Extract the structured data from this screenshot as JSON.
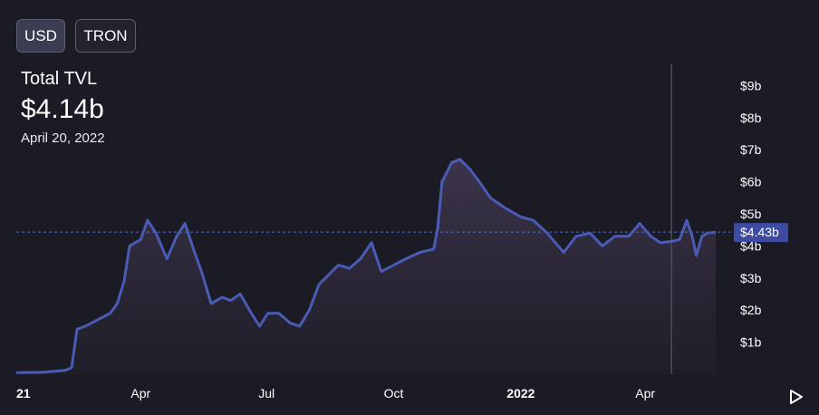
{
  "toggles": {
    "usd": "USD",
    "tron": "TRON"
  },
  "metric": {
    "label": "Total TVL",
    "value": "$4.14b",
    "date": "April 20, 2022"
  },
  "current_value_label": "$4.43b",
  "play_icon": "play-icon",
  "colors": {
    "background": "#1a1b25",
    "line": "#4a5bb5",
    "reference_line": "#5c6bc0",
    "value_badge": "#3d4ba3"
  },
  "chart_data": {
    "type": "area",
    "title": "",
    "xlabel": "",
    "ylabel": "",
    "x_ticks": [
      {
        "label": "21",
        "date": "2021-01-01",
        "bold": true
      },
      {
        "label": "Apr",
        "date": "2021-04-01",
        "bold": false
      },
      {
        "label": "Jul",
        "date": "2021-07-01",
        "bold": false
      },
      {
        "label": "Oct",
        "date": "2021-10-01",
        "bold": false
      },
      {
        "label": "2022",
        "date": "2022-01-01",
        "bold": true
      },
      {
        "label": "Apr",
        "date": "2022-04-01",
        "bold": false
      }
    ],
    "y_ticks": [
      "$1b",
      "$2b",
      "$3b",
      "$4b",
      "$5b",
      "$6b",
      "$7b",
      "$8b",
      "$9b"
    ],
    "y_tick_values": [
      1,
      2,
      3,
      4,
      5,
      6,
      7,
      8,
      9
    ],
    "ylim": [
      0,
      10
    ],
    "current_value": 4.43,
    "hover_date": "2022-04-20",
    "grid": false,
    "series": [
      {
        "values": [
          [
            "2021-01-01",
            0.05
          ],
          [
            "2021-01-20",
            0.06
          ],
          [
            "2021-02-05",
            0.12
          ],
          [
            "2021-02-10",
            0.2
          ],
          [
            "2021-02-14",
            1.4
          ],
          [
            "2021-02-20",
            1.5
          ],
          [
            "2021-03-01",
            1.7
          ],
          [
            "2021-03-10",
            1.9
          ],
          [
            "2021-03-15",
            2.2
          ],
          [
            "2021-03-20",
            2.9
          ],
          [
            "2021-03-24",
            4.0
          ],
          [
            "2021-04-01",
            4.2
          ],
          [
            "2021-04-06",
            4.8
          ],
          [
            "2021-04-12",
            4.4
          ],
          [
            "2021-04-20",
            3.6
          ],
          [
            "2021-04-27",
            4.3
          ],
          [
            "2021-05-03",
            4.7
          ],
          [
            "2021-05-10",
            3.8
          ],
          [
            "2021-05-15",
            3.2
          ],
          [
            "2021-05-22",
            2.2
          ],
          [
            "2021-05-30",
            2.4
          ],
          [
            "2021-06-05",
            2.3
          ],
          [
            "2021-06-12",
            2.5
          ],
          [
            "2021-06-20",
            1.9
          ],
          [
            "2021-06-26",
            1.5
          ],
          [
            "2021-07-02",
            1.9
          ],
          [
            "2021-07-10",
            1.9
          ],
          [
            "2021-07-18",
            1.6
          ],
          [
            "2021-07-25",
            1.5
          ],
          [
            "2021-08-01",
            2.0
          ],
          [
            "2021-08-08",
            2.8
          ],
          [
            "2021-08-15",
            3.1
          ],
          [
            "2021-08-22",
            3.4
          ],
          [
            "2021-08-30",
            3.3
          ],
          [
            "2021-09-07",
            3.6
          ],
          [
            "2021-09-15",
            4.1
          ],
          [
            "2021-09-22",
            3.2
          ],
          [
            "2021-10-01",
            3.4
          ],
          [
            "2021-10-10",
            3.6
          ],
          [
            "2021-10-20",
            3.8
          ],
          [
            "2021-10-30",
            3.9
          ],
          [
            "2021-11-02",
            4.6
          ],
          [
            "2021-11-05",
            6.0
          ],
          [
            "2021-11-12",
            6.6
          ],
          [
            "2021-11-18",
            6.7
          ],
          [
            "2021-11-25",
            6.4
          ],
          [
            "2021-12-02",
            6.0
          ],
          [
            "2021-12-10",
            5.5
          ],
          [
            "2021-12-20",
            5.2
          ],
          [
            "2022-01-01",
            4.9
          ],
          [
            "2022-01-10",
            4.8
          ],
          [
            "2022-01-20",
            4.4
          ],
          [
            "2022-02-01",
            3.8
          ],
          [
            "2022-02-10",
            4.3
          ],
          [
            "2022-02-20",
            4.4
          ],
          [
            "2022-03-01",
            4.0
          ],
          [
            "2022-03-10",
            4.3
          ],
          [
            "2022-03-20",
            4.3
          ],
          [
            "2022-03-28",
            4.7
          ],
          [
            "2022-04-05",
            4.3
          ],
          [
            "2022-04-12",
            4.1
          ],
          [
            "2022-04-20",
            4.14
          ],
          [
            "2022-04-26",
            4.2
          ],
          [
            "2022-05-01",
            4.8
          ],
          [
            "2022-05-05",
            4.3
          ],
          [
            "2022-05-08",
            3.7
          ],
          [
            "2022-05-12",
            4.3
          ],
          [
            "2022-05-16",
            4.4
          ],
          [
            "2022-05-22",
            4.43
          ]
        ]
      }
    ]
  }
}
